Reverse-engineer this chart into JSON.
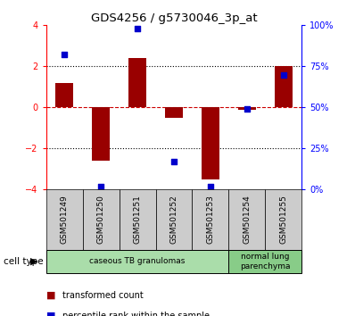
{
  "title": "GDS4256 / g5730046_3p_at",
  "samples": [
    "GSM501249",
    "GSM501250",
    "GSM501251",
    "GSM501252",
    "GSM501253",
    "GSM501254",
    "GSM501255"
  ],
  "red_bars": [
    1.2,
    -2.6,
    2.4,
    -0.5,
    -3.5,
    -0.1,
    2.0
  ],
  "blue_dots_pct": [
    82,
    2,
    98,
    17,
    2,
    49,
    70
  ],
  "ylim": [
    -4,
    4
  ],
  "yticks_left": [
    -4,
    -2,
    0,
    2,
    4
  ],
  "yticks_right_pct": [
    0,
    25,
    50,
    75,
    100
  ],
  "cell_type_groups": [
    {
      "label": "caseous TB granulomas",
      "samples": [
        0,
        1,
        2,
        3,
        4
      ],
      "color": "#aaddaa"
    },
    {
      "label": "normal lung\nparenchyma",
      "samples": [
        5,
        6
      ],
      "color": "#88cc88"
    }
  ],
  "bar_color": "#990000",
  "dot_color": "#0000cc",
  "hline_color": "#cc0000",
  "dotted_line_color": "#000000",
  "bg_color": "#ffffff",
  "plot_bg_color": "#ffffff",
  "sample_box_color": "#cccccc",
  "legend_red_label": "transformed count",
  "legend_blue_label": "percentile rank within the sample",
  "cell_type_label": "cell type"
}
